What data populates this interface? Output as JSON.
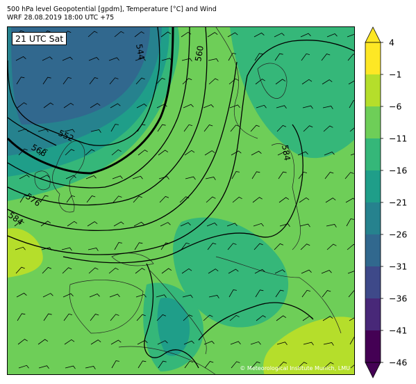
{
  "header": {
    "line1": "500 hPa level Geopotential [gpdm], Temperature [°C] and Wind",
    "line2": "WRF 28.08.2019 18:00 UTC +75"
  },
  "map": {
    "valid_time": "21 UTC Sat",
    "credit": "© Meteorological Institute Munich, LMU",
    "contour_labels": [
      "544",
      "552",
      "560",
      "568",
      "576",
      "584",
      "584"
    ]
  },
  "colorbar": {
    "ticks": [
      "4",
      "−1",
      "−6",
      "−11",
      "−16",
      "−21",
      "−26",
      "−31",
      "−36",
      "−41",
      "−46"
    ],
    "colors": [
      "#fde725",
      "#b5de2b",
      "#6ece58",
      "#35b779",
      "#1f9e89",
      "#26828e",
      "#31688e",
      "#3e4989",
      "#482878",
      "#440154"
    ],
    "over_color": "#fde725",
    "under_color": "#440154"
  }
}
